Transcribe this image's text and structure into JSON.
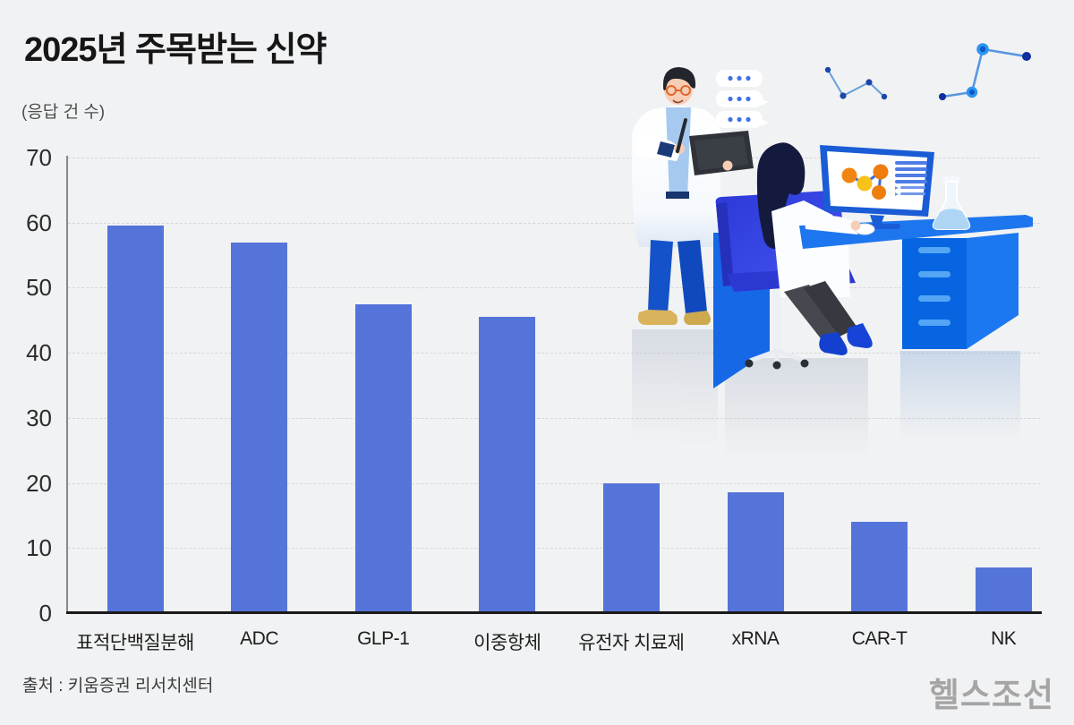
{
  "header": {
    "title": "2025년 주목받는 신약",
    "unit_label": "(응답 건 수)"
  },
  "footer": {
    "source": "출처 : 키움증권 리서치센터",
    "logo": "헬스조선"
  },
  "colors": {
    "background": "#f1f2f3",
    "bar": "#5574da",
    "grid": "#d6d7d9",
    "axis": "#1a1a1a",
    "logo_gray": "#a5a5a5",
    "illustration_blue": "#1b76ef",
    "chair_indigo": "#3a4ae8",
    "molecule_orange": "#f28511",
    "molecule_yellow": "#f8c219"
  },
  "illustration": {
    "name": "scientists-lab-illustration",
    "parts": [
      "standing-scientist",
      "sitting-scientist",
      "speech-bubbles",
      "molecule-constellations",
      "desk-with-drawers",
      "monitor-with-molecule",
      "erlenmeyer-flask",
      "office-chair"
    ]
  },
  "chart_data": {
    "type": "bar",
    "title": "2025년 주목받는 신약",
    "ylabel": "(응답 건 수)",
    "categories": [
      "표적단백질분해",
      "ADC",
      "GLP-1",
      "이중항체",
      "유전자 치료제",
      "xRNA",
      "CAR-T",
      "NK"
    ],
    "values": [
      59.5,
      57,
      47.5,
      45.5,
      20,
      18.5,
      14,
      7
    ],
    "ylim": [
      0,
      70
    ],
    "yticks": [
      0,
      10,
      20,
      30,
      40,
      50,
      60,
      70
    ],
    "grid": "horizontal-dashed",
    "legend": "none"
  }
}
